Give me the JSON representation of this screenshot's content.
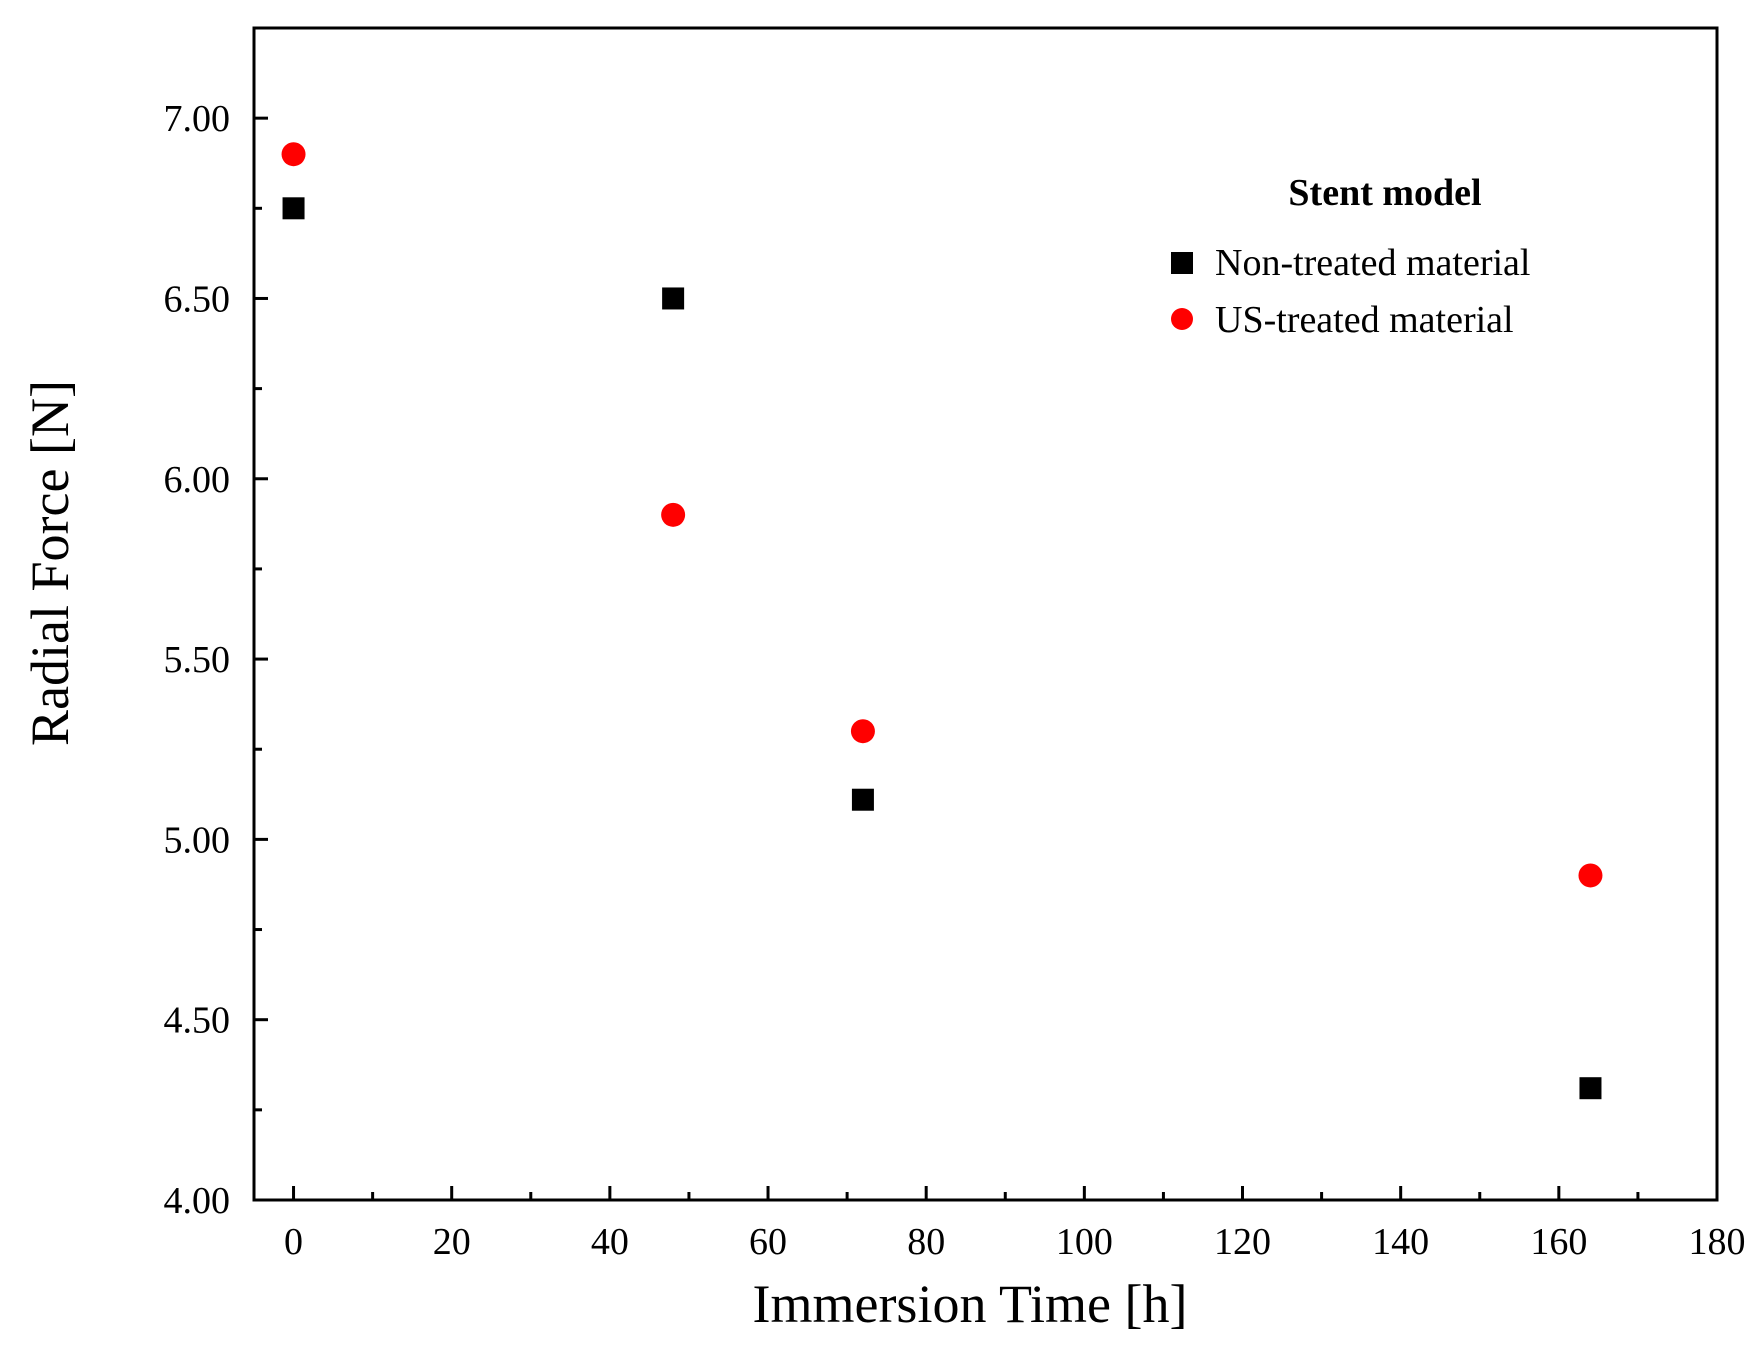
{
  "chart_data": {
    "type": "scatter",
    "title": "",
    "xlabel": "Immersion Time [h]",
    "ylabel": "Radial Force [N]",
    "xlim": [
      -5,
      180
    ],
    "ylim": [
      4.0,
      7.25
    ],
    "x_ticks": [
      0,
      20,
      40,
      60,
      80,
      100,
      120,
      140,
      160,
      180
    ],
    "y_ticks": [
      4.0,
      4.5,
      5.0,
      5.5,
      6.0,
      6.5,
      7.0
    ],
    "x_tick_labels": [
      "0",
      "20",
      "40",
      "60",
      "80",
      "100",
      "120",
      "140",
      "160",
      "180"
    ],
    "y_tick_labels": [
      "4.00",
      "4.50",
      "5.00",
      "5.50",
      "6.00",
      "6.50",
      "7.00"
    ],
    "grid": false,
    "legend": {
      "title": "Stent model",
      "placement": "top-right"
    },
    "series": [
      {
        "name": "Non-treated material",
        "marker": "square",
        "color": "#000000",
        "x": [
          0,
          48,
          72,
          164
        ],
        "y": [
          6.75,
          6.5,
          5.11,
          4.31
        ]
      },
      {
        "name": "US-treated material",
        "marker": "circle",
        "color": "#ff0000",
        "x": [
          0,
          48,
          72,
          164
        ],
        "y": [
          6.9,
          5.9,
          5.3,
          4.9
        ]
      }
    ]
  }
}
